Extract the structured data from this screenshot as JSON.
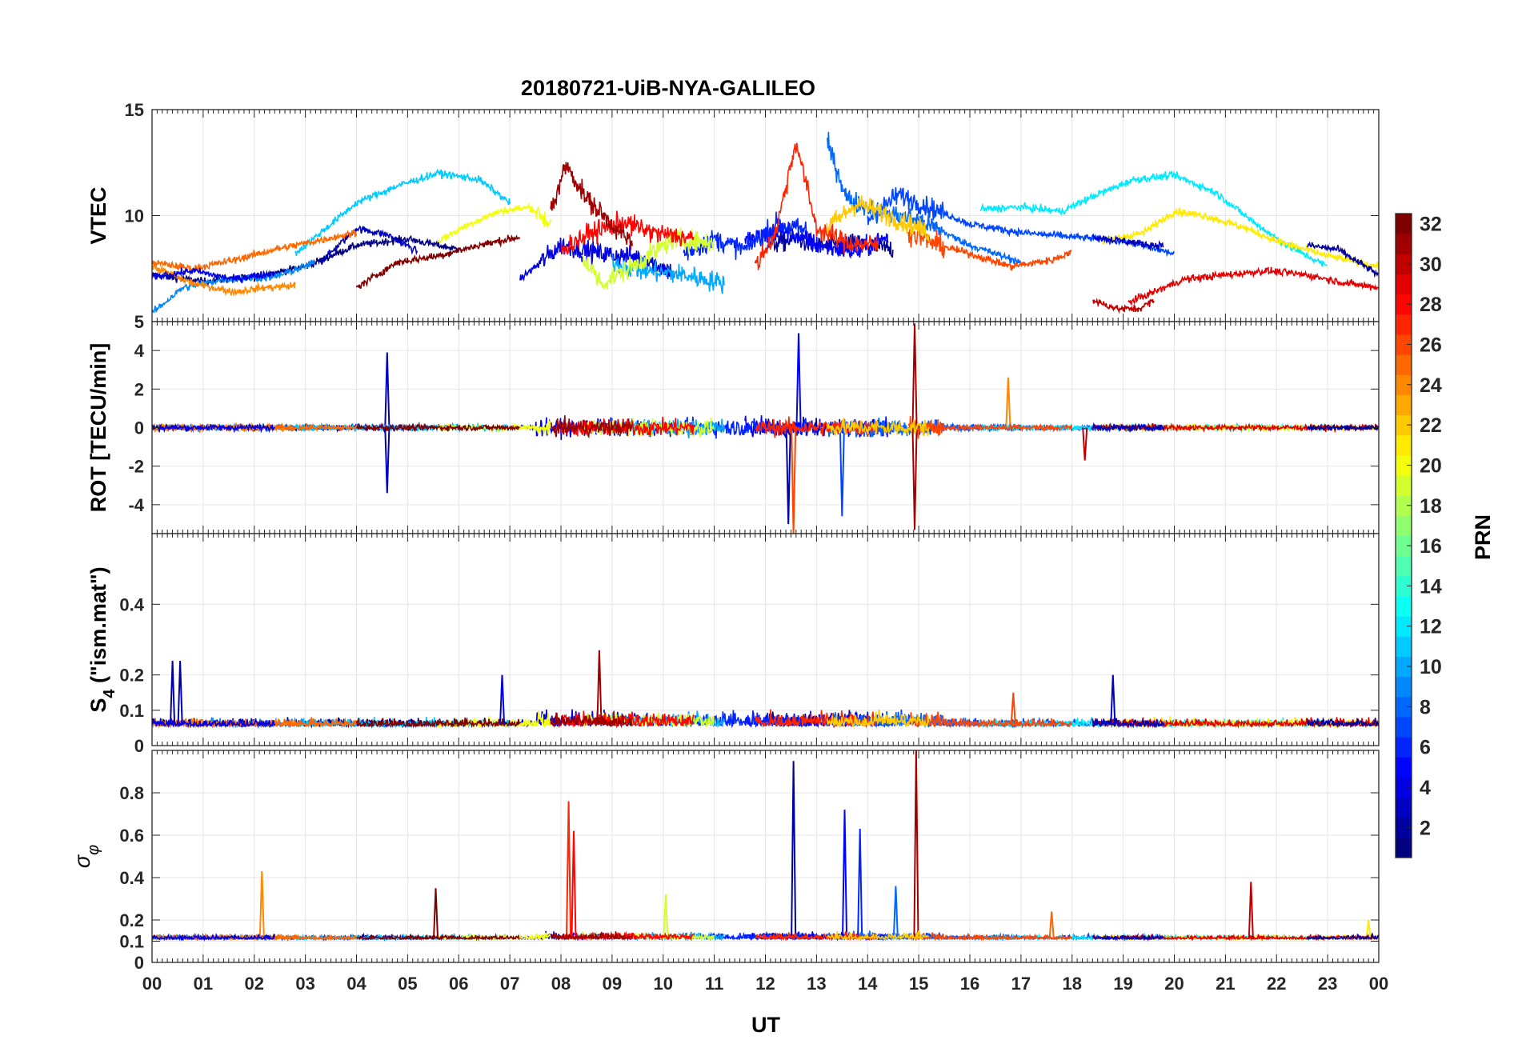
{
  "chart_data": {
    "type": "line",
    "title": "20180721-UiB-NYA-GALILEO",
    "xlabel": "UT",
    "x_tick_labels": [
      "00",
      "01",
      "02",
      "03",
      "04",
      "05",
      "06",
      "07",
      "08",
      "09",
      "10",
      "11",
      "12",
      "13",
      "14",
      "15",
      "16",
      "17",
      "18",
      "19",
      "20",
      "21",
      "22",
      "23",
      "00"
    ],
    "xlim": [
      0,
      24
    ],
    "panels": [
      {
        "ylabel": "VTEC",
        "ylim": [
          5,
          15
        ],
        "yticks": [
          5,
          10,
          15
        ],
        "ytick_labels": [
          "5",
          "10",
          "15"
        ]
      },
      {
        "ylabel": "ROT [TECU/min]",
        "ylim": [
          -5.5,
          5.5
        ],
        "yticks": [
          -4,
          -2,
          0,
          2,
          4
        ],
        "ytick_labels": [
          "-4",
          "-2",
          "0",
          "2",
          "4"
        ]
      },
      {
        "ylabel": "S4 (\"ism.mat\")",
        "ylabel_main": "S",
        "ylabel_sub": "4",
        "ylabel_rest": " (\"ism.mat\")",
        "ylim": [
          0,
          0.6
        ],
        "yticks": [
          0,
          0.1,
          0.2,
          0.4
        ],
        "ytick_labels": [
          "0",
          "0.1",
          "0.2",
          "0.4"
        ]
      },
      {
        "ylabel": "σφ",
        "ylabel_main": "σ",
        "ylabel_sub": "φ",
        "ylim": [
          0,
          1
        ],
        "yticks": [
          0,
          0.1,
          0.2,
          0.4,
          0.6,
          0.8
        ],
        "ytick_labels": [
          "0",
          "0.1",
          "0.2",
          "0.4",
          "0.6",
          "0.8"
        ]
      }
    ],
    "series": [
      {
        "prn": 1,
        "vtec": [
          [
            0,
            7.2
          ],
          [
            1,
            6.9
          ],
          [
            2,
            7.1
          ],
          [
            3,
            7.6
          ],
          [
            4,
            8.6
          ],
          [
            5,
            8.9
          ],
          [
            6,
            8.4
          ]
        ],
        "spikes": []
      },
      {
        "prn": 2,
        "vtec": [
          [
            12,
            8.6
          ],
          [
            12.6,
            8.9
          ],
          [
            13.2,
            8.5
          ],
          [
            13.8,
            8.7
          ],
          [
            14.5,
            8.4
          ]
        ],
        "spikes": [
          {
            "p": 3,
            "t": 12.55,
            "v": 0.95
          },
          {
            "p": 1,
            "t": 12.45,
            "v": -5.0
          }
        ]
      },
      {
        "prn": 3,
        "vtec": [
          [
            3.3,
            7.8
          ],
          [
            4,
            9.4
          ],
          [
            4.6,
            9.1
          ],
          [
            5.2,
            8.3
          ]
        ],
        "spikes": [
          {
            "p": 1,
            "t": 4.6,
            "v": 3.9
          },
          {
            "p": 1,
            "t": 4.6,
            "v": -3.4
          }
        ]
      },
      {
        "prn": 4,
        "vtec": [
          [
            7.2,
            7.0
          ],
          [
            8,
            8.6
          ],
          [
            8.8,
            8.2
          ],
          [
            9.6,
            8.0
          ],
          [
            10.2,
            7.3
          ]
        ],
        "spikes": []
      },
      {
        "prn": 5,
        "vtec": [
          [
            11.6,
            8.8
          ],
          [
            12.4,
            9.3
          ],
          [
            13,
            8.6
          ],
          [
            13.8,
            8.3
          ],
          [
            14.4,
            9.0
          ]
        ],
        "spikes": [
          {
            "p": 3,
            "t": 13.55,
            "v": 0.72
          },
          {
            "p": 1,
            "t": 12.65,
            "v": 4.9
          }
        ]
      },
      {
        "prn": 6,
        "vtec": [
          [
            10.4,
            8.2
          ],
          [
            11,
            8.9
          ],
          [
            11.6,
            8.4
          ],
          [
            12.2,
            9.6
          ],
          [
            12.8,
            9.3
          ]
        ],
        "spikes": [
          {
            "p": 3,
            "t": 13.85,
            "v": 0.63
          }
        ]
      },
      {
        "prn": 7,
        "vtec": [
          [
            14,
            9.8
          ],
          [
            14.6,
            11.0
          ],
          [
            15.2,
            10.4
          ],
          [
            16,
            9.6
          ],
          [
            17,
            9.2
          ],
          [
            18,
            9.0
          ],
          [
            19,
            8.8
          ],
          [
            20,
            8.2
          ]
        ],
        "spikes": [
          {
            "p": 1,
            "t": 13.5,
            "v": -4.6
          }
        ]
      },
      {
        "prn": 8,
        "vtec": [
          [
            13.2,
            13.5
          ],
          [
            13.6,
            10.8
          ],
          [
            14.2,
            10.2
          ],
          [
            15,
            9.8
          ],
          [
            16,
            8.6
          ],
          [
            17,
            7.8
          ]
        ],
        "spikes": [
          {
            "p": 3,
            "t": 14.55,
            "v": 0.36
          }
        ]
      },
      {
        "prn": 9,
        "vtec": [
          [
            0,
            5.4
          ],
          [
            0.6,
            6.6
          ],
          [
            1.4,
            7.0
          ],
          [
            2.4,
            7.1
          ],
          [
            3.2,
            7.8
          ]
        ],
        "spikes": []
      },
      {
        "prn": 10,
        "vtec": [
          [
            9,
            7.8
          ],
          [
            9.6,
            7.4
          ],
          [
            10.4,
            7.2
          ],
          [
            11.2,
            6.8
          ]
        ],
        "spikes": []
      },
      {
        "prn": 11,
        "vtec": [
          [
            2.8,
            8.2
          ],
          [
            3.4,
            9.4
          ],
          [
            4,
            10.6
          ],
          [
            4.8,
            11.4
          ],
          [
            5.6,
            12.0
          ],
          [
            6.4,
            11.7
          ],
          [
            7,
            10.6
          ]
        ],
        "spikes": []
      },
      {
        "prn": 12,
        "vtec": [
          [
            16.2,
            10.3
          ],
          [
            17,
            10.4
          ],
          [
            17.8,
            10.2
          ],
          [
            18.4,
            10.9
          ],
          [
            19.2,
            11.7
          ],
          [
            20,
            11.9
          ],
          [
            20.8,
            11.1
          ],
          [
            21.6,
            9.6
          ],
          [
            22.2,
            8.6
          ],
          [
            23,
            7.6
          ]
        ],
        "spikes": []
      },
      {
        "prn": 19,
        "vtec": [
          [
            8.4,
            8.1
          ],
          [
            8.8,
            6.8
          ],
          [
            9.4,
            7.6
          ],
          [
            10.2,
            8.9
          ],
          [
            11,
            8.7
          ]
        ],
        "spikes": [
          {
            "p": 3,
            "t": 10.05,
            "v": 0.32
          }
        ]
      },
      {
        "prn": 20,
        "vtec": [
          [
            5.6,
            8.8
          ],
          [
            6.2,
            9.6
          ],
          [
            6.8,
            10.2
          ],
          [
            7.4,
            10.4
          ],
          [
            7.8,
            9.6
          ]
        ],
        "spikes": []
      },
      {
        "prn": 21,
        "vtec": [
          [
            18.6,
            8.8
          ],
          [
            19.4,
            9.2
          ],
          [
            20,
            10.2
          ],
          [
            20.6,
            10.0
          ],
          [
            21.4,
            9.4
          ],
          [
            22,
            8.8
          ],
          [
            23,
            8.1
          ],
          [
            24,
            7.6
          ]
        ],
        "spikes": [
          {
            "p": 3,
            "t": 23.8,
            "v": 0.2
          }
        ]
      },
      {
        "prn": 24,
        "vtec": [
          [
            0,
            7.6
          ],
          [
            0.8,
            6.8
          ],
          [
            1.6,
            6.4
          ],
          [
            2.2,
            6.6
          ],
          [
            2.8,
            6.7
          ]
        ],
        "spikes": [
          {
            "p": 3,
            "t": 2.15,
            "v": 0.43
          },
          {
            "p": 1,
            "t": 16.75,
            "v": 2.6
          }
        ]
      },
      {
        "prn": 25,
        "vtec": [
          [
            0,
            7.8
          ],
          [
            0.8,
            7.5
          ],
          [
            1.6,
            7.9
          ],
          [
            2.4,
            8.4
          ],
          [
            3.2,
            8.8
          ],
          [
            4,
            9.2
          ]
        ],
        "spikes": [
          {
            "p": 3,
            "t": 17.6,
            "v": 0.24
          }
        ]
      },
      {
        "prn": 26,
        "vtec": [
          [
            14.8,
            9.2
          ],
          [
            15.4,
            8.6
          ],
          [
            16,
            8.2
          ],
          [
            16.8,
            7.6
          ],
          [
            17.6,
            7.9
          ],
          [
            18,
            8.3
          ]
        ],
        "spikes": [
          {
            "p": 1,
            "t": 12.55,
            "v": -5.5
          },
          {
            "p": 2,
            "t": 16.85,
            "v": 0.15
          }
        ]
      },
      {
        "prn": 27,
        "vtec": [
          [
            11.8,
            7.6
          ],
          [
            12.2,
            9.2
          ],
          [
            12.6,
            13.5
          ],
          [
            13,
            9.4
          ],
          [
            13.6,
            8.7
          ],
          [
            14.2,
            8.6
          ]
        ],
        "spikes": [
          {
            "p": 3,
            "t": 8.15,
            "v": 0.76
          }
        ]
      },
      {
        "prn": 28,
        "vtec": [
          [
            8,
            8.4
          ],
          [
            8.6,
            9.2
          ],
          [
            9.2,
            9.7
          ],
          [
            9.8,
            9.2
          ],
          [
            10.6,
            8.9
          ]
        ],
        "spikes": [
          {
            "p": 3,
            "t": 8.25,
            "v": 0.62
          }
        ]
      },
      {
        "prn": 29,
        "vtec": [
          [
            19.1,
            5.9
          ],
          [
            19.6,
            6.4
          ],
          [
            20.2,
            7.0
          ],
          [
            21,
            7.2
          ],
          [
            21.8,
            7.4
          ],
          [
            22.6,
            7.2
          ],
          [
            23.4,
            6.8
          ],
          [
            24,
            6.6
          ]
        ],
        "spikes": []
      },
      {
        "prn": 30,
        "vtec": [
          [
            18.4,
            6.0
          ],
          [
            18.9,
            5.6
          ],
          [
            19.3,
            5.6
          ],
          [
            19.6,
            6.0
          ]
        ],
        "spikes": [
          {
            "p": 3,
            "t": 21.5,
            "v": 0.38
          },
          {
            "p": 1,
            "t": 18.25,
            "v": -1.7
          }
        ]
      },
      {
        "prn": 31,
        "vtec": [
          [
            7.8,
            10.2
          ],
          [
            8.1,
            12.4
          ],
          [
            8.5,
            10.8
          ],
          [
            9,
            9.6
          ],
          [
            9.4,
            8.6
          ]
        ],
        "spikes": [
          {
            "p": 2,
            "t": 8.75,
            "v": 0.27
          },
          {
            "p": 1,
            "t": 14.92,
            "v": 5.4
          },
          {
            "p": 1,
            "t": 14.92,
            "v": -5.3
          },
          {
            "p": 3,
            "t": 14.95,
            "v": 1.0
          }
        ]
      },
      {
        "prn": 32,
        "vtec": [
          [
            4,
            6.6
          ],
          [
            4.8,
            7.8
          ],
          [
            5.6,
            8.1
          ],
          [
            6.4,
            8.6
          ],
          [
            7.2,
            9.0
          ]
        ],
        "spikes": [
          {
            "p": 3,
            "t": 5.55,
            "v": 0.35
          }
        ]
      },
      {
        "prn": 22,
        "vtec": [
          [
            13.2,
            9.4
          ],
          [
            13.8,
            10.6
          ],
          [
            14.6,
            9.8
          ],
          [
            15.2,
            9.2
          ]
        ],
        "spikes": [
          {
            "p": 3,
            "t": 15.0,
            "v": 0.15
          }
        ]
      },
      {
        "prn": 3,
        "vtec": [
          [
            18.4,
            9.0
          ],
          [
            19,
            8.8
          ],
          [
            19.6,
            8.6
          ],
          [
            19.8,
            8.6
          ]
        ],
        "spikes": [
          {
            "p": 2,
            "t": 18.8,
            "v": 0.2
          }
        ]
      },
      {
        "prn": 2,
        "vtec": [
          [
            22.6,
            8.6
          ],
          [
            23.2,
            8.4
          ],
          [
            23.6,
            7.8
          ],
          [
            24,
            7.2
          ]
        ],
        "spikes": [
          {
            "p": 2,
            "t": 0.4,
            "v": 0.24
          },
          {
            "p": 2,
            "t": 0.55,
            "v": 0.24
          }
        ]
      },
      {
        "prn": 4,
        "vtec": [
          [
            0,
            7.1
          ],
          [
            0.8,
            7.4
          ],
          [
            1.6,
            7.0
          ],
          [
            2.4,
            7.3
          ]
        ],
        "spikes": [
          {
            "p": 2,
            "t": 6.85,
            "v": 0.2
          }
        ]
      }
    ],
    "colorbar": {
      "label": "PRN",
      "range": [
        1,
        32
      ],
      "ticks": [
        2,
        4,
        6,
        8,
        10,
        12,
        14,
        16,
        18,
        20,
        22,
        24,
        26,
        28,
        30,
        32
      ],
      "tick_labels": [
        "2",
        "4",
        "6",
        "8",
        "10",
        "12",
        "14",
        "16",
        "18",
        "20",
        "22",
        "24",
        "26",
        "28",
        "30",
        "32"
      ],
      "colormap": "jet"
    },
    "grid": true
  }
}
